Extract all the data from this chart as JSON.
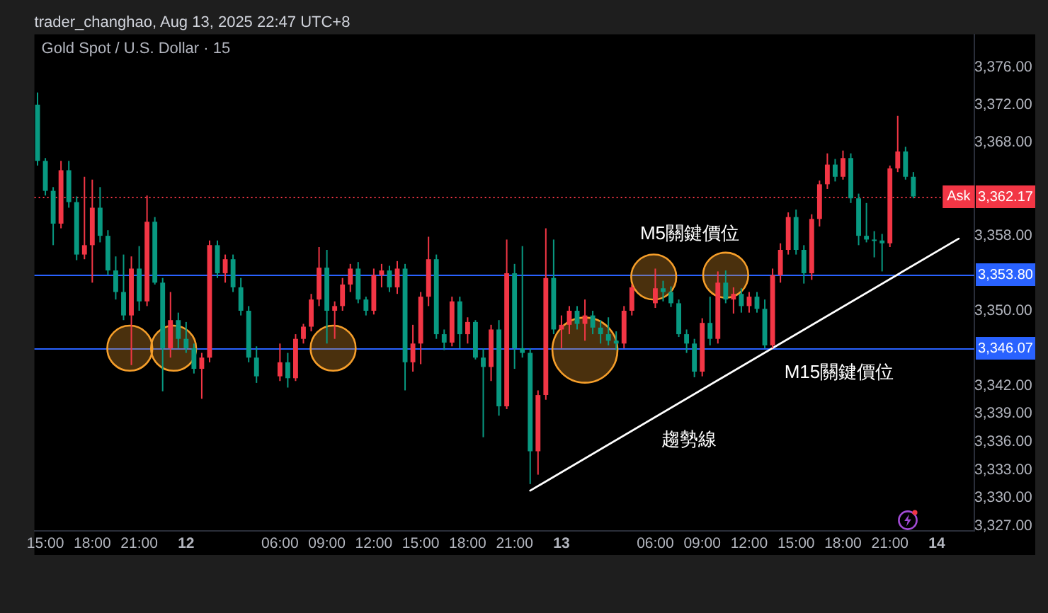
{
  "chart_data": {
    "type": "candlestick",
    "title": "Gold Spot / U.S. Dollar · 15",
    "annotations": [
      "trader_changhao, Aug 13, 2025 22:47 UTC+8",
      {
        "text": "M5關鍵價位",
        "x": "2025-08-13T08:12",
        "y": 3353.8
      },
      {
        "text": "M15關鍵價位",
        "x": "2025-08-13T17:45",
        "y": 3346.07
      },
      {
        "text": "Ask",
        "x": "2025-08-14T01:24",
        "y": 3362.17
      }
    ],
    "x": [
      "2025-08-11T14:30",
      "2025-08-11T15:00",
      "2025-08-11T15:30",
      "2025-08-11T16:00",
      "2025-08-11T16:30",
      "2025-08-11T17:00",
      "2025-08-11T17:30",
      "2025-08-11T18:00",
      "2025-08-11T18:30",
      "2025-08-11T19:00",
      "2025-08-11T19:30",
      "2025-08-11T20:00",
      "2025-08-11T20:30",
      "2025-08-11T21:00",
      "2025-08-11T21:30",
      "2025-08-11T22:00",
      "2025-08-11T22:30",
      "2025-08-11T23:00",
      "2025-08-11T23:30",
      "2025-08-12T00:00",
      "2025-08-12T00:30",
      "2025-08-12T01:00",
      "2025-08-12T01:30",
      "2025-08-12T02:00",
      "2025-08-12T02:30",
      "2025-08-12T03:00",
      "2025-08-12T03:30",
      "2025-08-12T04:00",
      "2025-08-12T04:30",
      "2025-08-12T06:00",
      "2025-08-12T06:30",
      "2025-08-12T07:00",
      "2025-08-12T07:30",
      "2025-08-12T08:00",
      "2025-08-12T08:30",
      "2025-08-12T09:00",
      "2025-08-12T09:30",
      "2025-08-12T10:00",
      "2025-08-12T10:30",
      "2025-08-12T11:00",
      "2025-08-12T11:30",
      "2025-08-12T12:00",
      "2025-08-12T12:30",
      "2025-08-12T13:00",
      "2025-08-12T13:30",
      "2025-08-12T14:00",
      "2025-08-12T14:30",
      "2025-08-12T15:00",
      "2025-08-12T15:30",
      "2025-08-12T16:00",
      "2025-08-12T16:30",
      "2025-08-12T17:00",
      "2025-08-12T17:30",
      "2025-08-12T18:00",
      "2025-08-12T18:30",
      "2025-08-12T19:00",
      "2025-08-12T19:30",
      "2025-08-12T20:00",
      "2025-08-12T20:30",
      "2025-08-12T21:00",
      "2025-08-12T21:30",
      "2025-08-12T22:00",
      "2025-08-12T22:30",
      "2025-08-12T23:00",
      "2025-08-12T23:30",
      "2025-08-13T00:00",
      "2025-08-13T00:30",
      "2025-08-13T01:00",
      "2025-08-13T01:30",
      "2025-08-13T02:00",
      "2025-08-13T02:30",
      "2025-08-13T03:00",
      "2025-08-13T03:30",
      "2025-08-13T04:00",
      "2025-08-13T04:30",
      "2025-08-13T06:00",
      "2025-08-13T06:30",
      "2025-08-13T07:00",
      "2025-08-13T07:30",
      "2025-08-13T08:00",
      "2025-08-13T08:30",
      "2025-08-13T09:00",
      "2025-08-13T09:30",
      "2025-08-13T10:00",
      "2025-08-13T10:30",
      "2025-08-13T11:00",
      "2025-08-13T11:30",
      "2025-08-13T12:00",
      "2025-08-13T12:30",
      "2025-08-13T13:00",
      "2025-08-13T13:30",
      "2025-08-13T14:00",
      "2025-08-13T14:30",
      "2025-08-13T15:00",
      "2025-08-13T15:30",
      "2025-08-13T16:00",
      "2025-08-13T16:30",
      "2025-08-13T17:00",
      "2025-08-13T17:30",
      "2025-08-13T18:00",
      "2025-08-13T18:30",
      "2025-08-13T19:00",
      "2025-08-13T19:30",
      "2025-08-13T20:00",
      "2025-08-13T20:30",
      "2025-08-13T21:00",
      "2025-08-13T21:30",
      "2025-08-13T22:00",
      "2025-08-13T22:30"
    ],
    "ohlc": [
      [
        3372.0,
        3373.3,
        3365.5,
        3366.0
      ],
      [
        3366.0,
        3366.3,
        3362.3,
        3362.8
      ],
      [
        3362.8,
        3363.2,
        3357.0,
        3359.3
      ],
      [
        3359.3,
        3366.0,
        3358.8,
        3365.0
      ],
      [
        3365.0,
        3366.0,
        3361.0,
        3361.6
      ],
      [
        3361.6,
        3362.2,
        3355.4,
        3356.0
      ],
      [
        3356.0,
        3364.3,
        3355.5,
        3357.0
      ],
      [
        3357.0,
        3364.0,
        3353.0,
        3361.0
      ],
      [
        3361.0,
        3363.2,
        3357.3,
        3358.0
      ],
      [
        3358.0,
        3358.6,
        3353.8,
        3354.3
      ],
      [
        3354.3,
        3355.8,
        3351.2,
        3352.0
      ],
      [
        3352.0,
        3356.0,
        3349.0,
        3349.5
      ],
      [
        3349.5,
        3355.8,
        3344.2,
        3354.5
      ],
      [
        3354.5,
        3356.9,
        3350.0,
        3351.0
      ],
      [
        3351.0,
        3362.3,
        3350.5,
        3359.5
      ],
      [
        3359.5,
        3360.0,
        3352.8,
        3353.0
      ],
      [
        3353.0,
        3353.5,
        3341.4,
        3346.0
      ],
      [
        3346.0,
        3352.0,
        3345.0,
        3349.0
      ],
      [
        3349.0,
        3349.8,
        3346.0,
        3347.0
      ],
      [
        3347.0,
        3348.8,
        3345.5,
        3346.0
      ],
      [
        3346.0,
        3346.5,
        3343.3,
        3343.8
      ],
      [
        3343.8,
        3345.5,
        3340.6,
        3345.0
      ],
      [
        3345.0,
        3357.5,
        3344.5,
        3357.0
      ],
      [
        3357.0,
        3357.5,
        3353.5,
        3354.0
      ],
      [
        3354.0,
        3356.0,
        3353.0,
        3355.5
      ],
      [
        3355.5,
        3356.0,
        3352.0,
        3352.5
      ],
      [
        3352.5,
        3353.5,
        3349.5,
        3350.0
      ],
      [
        3350.0,
        3350.5,
        3344.5,
        3345.0
      ],
      [
        3345.0,
        3346.2,
        3342.3,
        3343.0
      ],
      [
        3343.0,
        3346.5,
        3342.5,
        3344.5
      ],
      [
        3344.5,
        3345.5,
        3341.8,
        3342.8
      ],
      [
        3342.8,
        3347.5,
        3342.5,
        3347.0
      ],
      [
        3347.0,
        3348.6,
        3346.5,
        3348.3
      ],
      [
        3348.3,
        3351.8,
        3347.8,
        3351.2
      ],
      [
        3351.2,
        3356.8,
        3350.5,
        3354.6
      ],
      [
        3354.6,
        3356.5,
        3346.5,
        3350.0
      ],
      [
        3350.0,
        3351.0,
        3347.0,
        3350.5
      ],
      [
        3350.5,
        3353.5,
        3350.0,
        3352.8
      ],
      [
        3352.8,
        3355.0,
        3352.0,
        3354.5
      ],
      [
        3354.5,
        3355.2,
        3350.8,
        3351.2
      ],
      [
        3351.2,
        3351.5,
        3349.5,
        3350.0
      ],
      [
        3350.0,
        3354.5,
        3349.6,
        3353.8
      ],
      [
        3353.8,
        3355.0,
        3352.5,
        3354.3
      ],
      [
        3354.3,
        3354.8,
        3352.0,
        3352.5
      ],
      [
        3352.5,
        3355.3,
        3351.8,
        3354.5
      ],
      [
        3354.5,
        3355.0,
        3341.5,
        3344.5
      ],
      [
        3344.5,
        3348.5,
        3343.5,
        3346.5
      ],
      [
        3346.5,
        3352.0,
        3344.3,
        3351.5
      ],
      [
        3351.5,
        3357.9,
        3350.5,
        3355.5
      ],
      [
        3355.5,
        3356.0,
        3347.0,
        3347.5
      ],
      [
        3347.5,
        3348.0,
        3345.8,
        3346.6
      ],
      [
        3346.6,
        3351.5,
        3346.2,
        3351.0
      ],
      [
        3351.0,
        3351.5,
        3346.0,
        3347.5
      ],
      [
        3347.5,
        3349.3,
        3346.5,
        3348.8
      ],
      [
        3348.8,
        3349.0,
        3344.8,
        3345.0
      ],
      [
        3345.0,
        3346.0,
        3336.5,
        3344.0
      ],
      [
        3344.0,
        3348.5,
        3342.5,
        3348.0
      ],
      [
        3348.0,
        3349.0,
        3338.8,
        3339.8
      ],
      [
        3339.8,
        3357.6,
        3339.5,
        3354.0
      ],
      [
        3354.0,
        3355.0,
        3343.8,
        3346.0
      ],
      [
        3346.0,
        3356.9,
        3345.0,
        3345.5
      ],
      [
        3345.5,
        3346.0,
        3331.5,
        3335.0
      ],
      [
        3335.0,
        3341.5,
        3332.5,
        3341.0
      ],
      [
        3341.0,
        3358.8,
        3340.5,
        3353.5
      ],
      [
        3353.5,
        3357.6,
        3347.5,
        3348.0
      ],
      [
        3348.0,
        3349.5,
        3346.0,
        3348.5
      ],
      [
        3348.5,
        3350.5,
        3347.5,
        3350.0
      ],
      [
        3350.0,
        3350.5,
        3348.0,
        3348.6
      ],
      [
        3348.6,
        3351.2,
        3346.8,
        3349.5
      ],
      [
        3349.5,
        3350.0,
        3347.5,
        3348.2
      ],
      [
        3348.2,
        3349.0,
        3346.5,
        3347.5
      ],
      [
        3347.5,
        3349.3,
        3346.3,
        3346.8
      ],
      [
        3346.8,
        3347.8,
        3345.8,
        3346.5
      ],
      [
        3346.5,
        3350.5,
        3346.0,
        3350.0
      ],
      [
        3350.0,
        3352.8,
        3349.5,
        3352.5
      ],
      [
        3350.8,
        3354.5,
        3350.3,
        3352.4
      ],
      [
        3352.4,
        3353.2,
        3351.0,
        3352.0
      ],
      [
        3352.0,
        3352.6,
        3350.4,
        3350.8
      ],
      [
        3350.8,
        3351.2,
        3347.2,
        3347.5
      ],
      [
        3347.5,
        3348.0,
        3345.5,
        3346.5
      ],
      [
        3346.5,
        3347.0,
        3342.9,
        3343.5
      ],
      [
        3343.5,
        3349.2,
        3343.0,
        3348.7
      ],
      [
        3348.7,
        3351.5,
        3346.3,
        3347.0
      ],
      [
        3347.0,
        3354.2,
        3346.5,
        3353.0
      ],
      [
        3353.0,
        3354.3,
        3350.8,
        3351.2
      ],
      [
        3351.2,
        3352.5,
        3349.7,
        3351.8
      ],
      [
        3351.8,
        3352.4,
        3349.8,
        3350.5
      ],
      [
        3350.5,
        3352.0,
        3349.8,
        3351.5
      ],
      [
        3351.5,
        3352.0,
        3349.8,
        3350.2
      ],
      [
        3350.2,
        3351.2,
        3346.0,
        3346.3
      ],
      [
        3346.3,
        3354.5,
        3346.0,
        3353.8
      ],
      [
        3353.8,
        3357.2,
        3353.0,
        3356.5
      ],
      [
        3356.5,
        3360.5,
        3356.0,
        3360.0
      ],
      [
        3360.0,
        3360.8,
        3356.0,
        3356.5
      ],
      [
        3356.5,
        3357.0,
        3352.9,
        3354.0
      ],
      [
        3354.0,
        3360.3,
        3353.3,
        3359.8
      ],
      [
        3359.8,
        3363.9,
        3359.0,
        3363.5
      ],
      [
        3363.5,
        3366.8,
        3363.0,
        3365.6
      ],
      [
        3365.6,
        3366.2,
        3363.8,
        3364.3
      ],
      [
        3364.3,
        3367.1,
        3364.0,
        3366.3
      ],
      [
        3366.3,
        3366.8,
        3361.5,
        3362.0
      ],
      [
        3362.0,
        3362.5,
        3357.0,
        3358.0
      ],
      [
        3358.0,
        3361.5,
        3357.3,
        3357.6
      ],
      [
        3357.6,
        3358.5,
        3355.7,
        3357.5
      ],
      [
        3357.5,
        3358.2,
        3354.2,
        3357.2
      ],
      [
        3357.2,
        3365.5,
        3356.8,
        3365.2
      ],
      [
        3365.2,
        3370.8,
        3364.8,
        3367.0
      ],
      [
        3367.0,
        3367.5,
        3364.0,
        3364.3
      ],
      [
        3364.3,
        3364.8,
        3362.0,
        3362.2
      ]
    ],
    "colors": [
      "#089981",
      "#089981",
      "#089981",
      "#f23645",
      "#089981",
      "#089981",
      "#f23645",
      "#f23645",
      "#089981",
      "#089981",
      "#089981",
      "#089981",
      "#f23645",
      "#089981",
      "#f23645",
      "#089981",
      "#089981",
      "#f23645",
      "#089981",
      "#089981",
      "#089981",
      "#f23645",
      "#f23645",
      "#089981",
      "#f23645",
      "#089981",
      "#089981",
      "#089981",
      "#089981",
      "#f23645",
      "#089981",
      "#f23645",
      "#f23645",
      "#f23645",
      "#f23645",
      "#089981",
      "#f23645",
      "#f23645",
      "#f23645",
      "#089981",
      "#089981",
      "#f23645",
      "#f23645",
      "#089981",
      "#f23645",
      "#089981",
      "#f23645",
      "#f23645",
      "#f23645",
      "#089981",
      "#089981",
      "#f23645",
      "#089981",
      "#f23645",
      "#089981",
      "#089981",
      "#f23645",
      "#089981",
      "#f23645",
      "#089981",
      "#089981",
      "#089981",
      "#f23645",
      "#f23645",
      "#089981",
      "#f23645",
      "#f23645",
      "#089981",
      "#f23645",
      "#089981",
      "#089981",
      "#089981",
      "#089981",
      "#f23645",
      "#f23645",
      "#f23645",
      "#089981",
      "#089981",
      "#089981",
      "#089981",
      "#089981",
      "#f23645",
      "#089981",
      "#f23645",
      "#089981",
      "#f23645",
      "#089981",
      "#f23645",
      "#089981",
      "#089981",
      "#f23645",
      "#f23645",
      "#f23645",
      "#089981",
      "#089981",
      "#f23645",
      "#f23645",
      "#f23645",
      "#089981",
      "#f23645",
      "#089981",
      "#089981",
      "#089981",
      "#089981",
      "#089981",
      "#f23645",
      "#f23645",
      "#089981",
      "#089981"
    ],
    "series": [
      {
        "type": "line",
        "name": "趨勢線",
        "x": [
          "2025-08-12T22:00",
          "2025-08-14T01:24"
        ],
        "values": [
          3330.8,
          3357.7
        ],
        "color": "#ffffff"
      },
      {
        "type": "bubble",
        "x": [
          "2025-08-11T20:24",
          "2025-08-11T23:12",
          "2025-08-12T09:24",
          "2025-08-13T01:30",
          "2025-08-13T05:54",
          "2025-08-13T10:30"
        ],
        "values": [
          3346.0,
          3346.0,
          3346.0,
          3345.8,
          3353.6,
          3353.8
        ],
        "sizes": [
          0.48,
          0.48,
          0.48,
          1,
          0.48,
          0.48
        ],
        "color": "#f59e2a"
      }
    ],
    "xlim": [
      "2025-08-11T14:18",
      "2025-08-14T02:24"
    ],
    "xticks": [
      {
        "value": "2025-08-11T15:00",
        "label": "15:00"
      },
      {
        "value": "2025-08-11T18:00",
        "label": "18:00"
      },
      {
        "value": "2025-08-11T21:00",
        "label": "21:00"
      },
      {
        "value": "2025-08-12",
        "label": "12"
      },
      {
        "value": "2025-08-12T06:00",
        "label": "06:00"
      },
      {
        "value": "2025-08-12T09:00",
        "label": "09:00"
      },
      {
        "value": "2025-08-12T12:00",
        "label": "12:00"
      },
      {
        "value": "2025-08-12T15:00",
        "label": "15:00"
      },
      {
        "value": "2025-08-12T18:00",
        "label": "18:00"
      },
      {
        "value": "2025-08-12T21:00",
        "label": "21:00"
      },
      {
        "value": "2025-08-13",
        "label": "13"
      },
      {
        "value": "2025-08-13T06:00",
        "label": "06:00"
      },
      {
        "value": "2025-08-13T09:00",
        "label": "09:00"
      },
      {
        "value": "2025-08-13T12:00",
        "label": "12:00"
      },
      {
        "value": "2025-08-13T15:00",
        "label": "15:00"
      },
      {
        "value": "2025-08-13T18:00",
        "label": "18:00"
      },
      {
        "value": "2025-08-13T21:00",
        "label": "21:00"
      },
      {
        "value": "2025-08-14",
        "label": "14"
      }
    ],
    "ylim": [
      3326.5,
      3379.5
    ],
    "yticks": [
      {
        "value": 3327,
        "label": "3,327.00"
      },
      {
        "value": 3330,
        "label": "3,330.00"
      },
      {
        "value": 3333,
        "label": "3,333.00"
      },
      {
        "value": 3336,
        "label": "3,336.00"
      },
      {
        "value": 3339,
        "label": "3,339.00"
      },
      {
        "value": 3342,
        "label": "3,342.00"
      },
      {
        "value": 3350,
        "label": "3,350.00"
      },
      {
        "value": 3358,
        "label": "3,358.00"
      },
      {
        "value": 3368,
        "label": "3,368.00"
      },
      {
        "value": 3372,
        "label": "3,372.00"
      },
      {
        "value": 3376,
        "label": "3,376.00"
      }
    ],
    "ref_lines": [
      {
        "axis": "y",
        "value": 3353.8,
        "label": "3,353.80",
        "color": "#2962ff"
      },
      {
        "axis": "y",
        "value": 3346.07,
        "label": "3,346.07",
        "color": "#2962ff"
      },
      {
        "axis": "y",
        "value": 3362.17,
        "label": "3,362.17",
        "color": "#f23645",
        "line_style": "dotted"
      }
    ]
  }
}
